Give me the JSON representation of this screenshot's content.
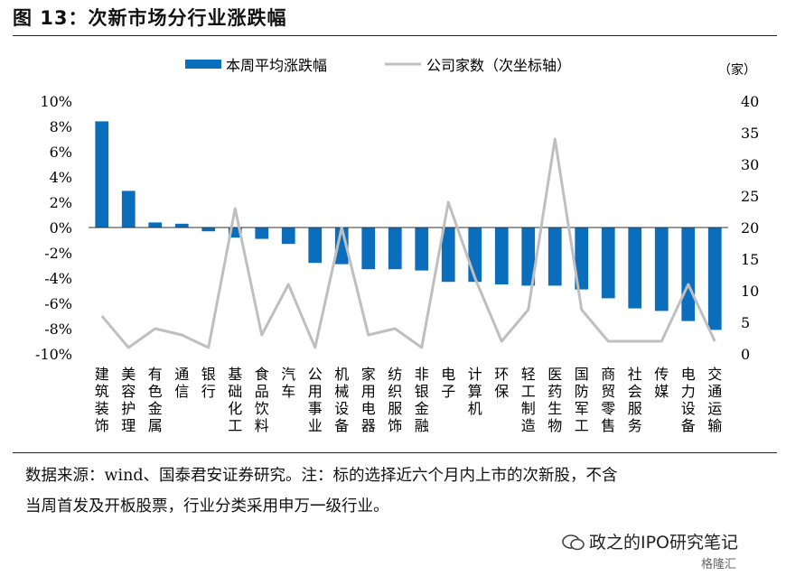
{
  "figure": {
    "title": "图 13：次新市场分行业涨跌幅",
    "source_line1": "数据来源：wind、国泰君安证券研究。注：标的选择近六个月内上市的次新股，不含",
    "source_line2": "当周首发及开板股票，行业分类采用申万一级行业。",
    "watermark": "政之的IPO研究笔记",
    "watermark2": "格隆汇"
  },
  "chart_data": {
    "type": "bar",
    "categories": [
      "建筑装饰",
      "美容护理",
      "有色金属",
      "通信",
      "银行",
      "基础化工",
      "食品饮料",
      "汽车",
      "公用事业",
      "机械设备",
      "家用电器",
      "纺织服饰",
      "非银金融",
      "电子",
      "计算机",
      "环保",
      "轻工制造",
      "医药生物",
      "国防军工",
      "商贸零售",
      "社会服务",
      "传媒",
      "电力设备",
      "交通运输"
    ],
    "series": [
      {
        "name": "本周平均涨跌幅",
        "kind": "bar",
        "axis": "left",
        "color": "#0a6ebd",
        "values": [
          8.4,
          2.9,
          0.4,
          0.3,
          -0.3,
          -0.8,
          -0.9,
          -1.3,
          -2.8,
          -2.9,
          -3.3,
          -3.3,
          -3.4,
          -4.3,
          -4.3,
          -4.5,
          -4.6,
          -4.6,
          -4.9,
          -5.6,
          -6.4,
          -6.6,
          -7.4,
          -8.1
        ]
      },
      {
        "name": "公司家数（次坐标轴）",
        "kind": "line",
        "axis": "right",
        "color": "#bfbfbf",
        "values": [
          6,
          1,
          4,
          3,
          1,
          23,
          3,
          11,
          1,
          20,
          3,
          4,
          1,
          24,
          12,
          2,
          7,
          34,
          7,
          2,
          2,
          2,
          11,
          2
        ]
      }
    ],
    "y_left": {
      "min": -10,
      "max": 10,
      "step": 2,
      "ticks": [
        "10%",
        "8%",
        "6%",
        "4%",
        "2%",
        "0%",
        "-2%",
        "-4%",
        "-6%",
        "-8%",
        "-10%"
      ]
    },
    "y_right": {
      "min": 0,
      "max": 40,
      "step": 5,
      "ticks": [
        "40",
        "35",
        "30",
        "25",
        "20",
        "15",
        "10",
        "5",
        "0"
      ],
      "unit": "（家）"
    },
    "legend": {
      "placement": "top-center"
    },
    "grid": false
  }
}
